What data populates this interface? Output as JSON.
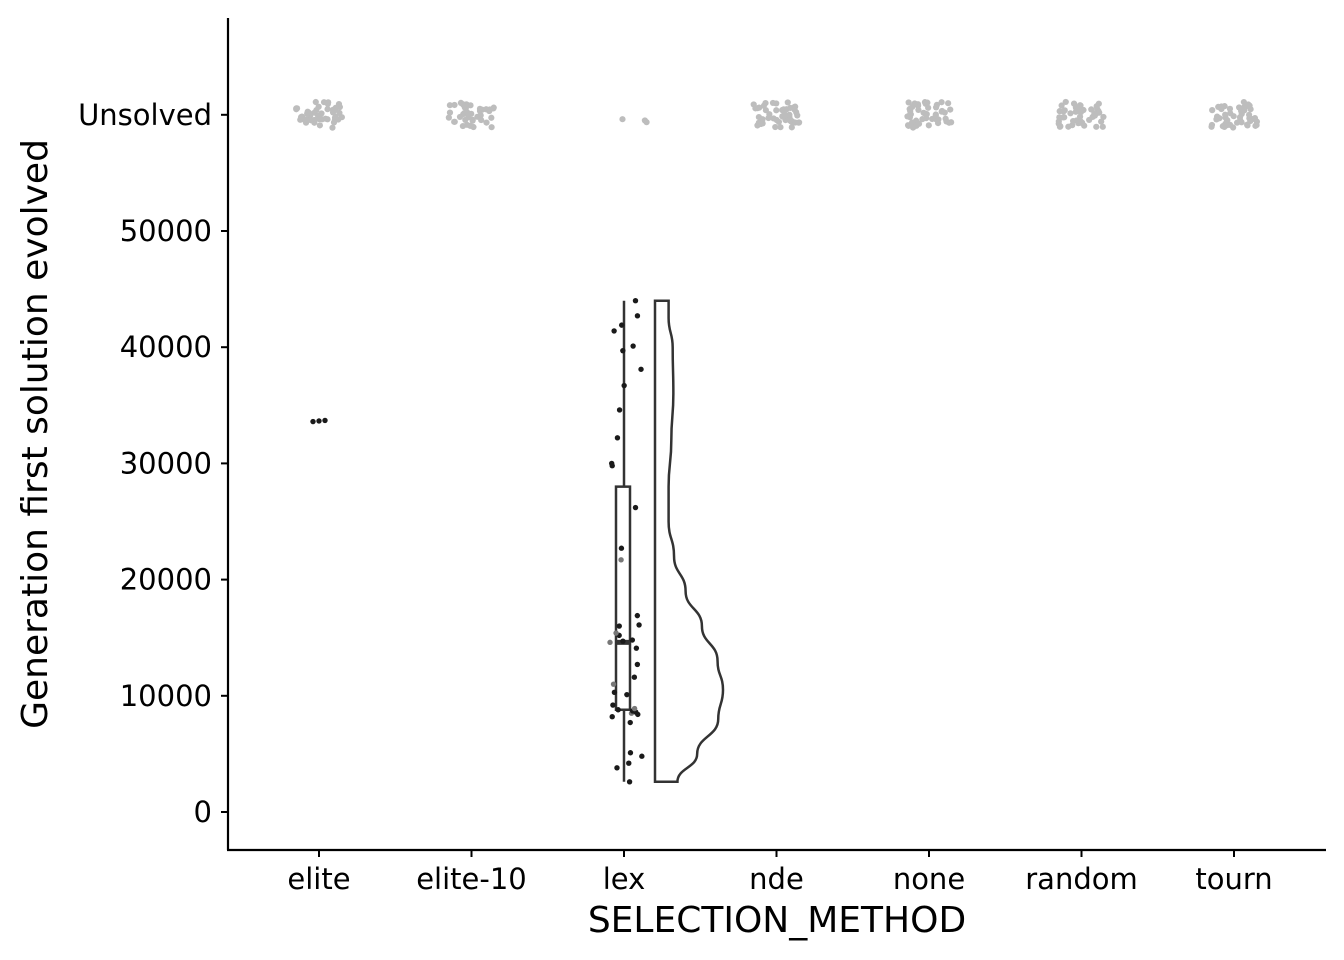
{
  "chart_data": {
    "type": "scatter",
    "subtype": "raincloud (jittered points + boxplot + half violin)",
    "xlabel": "SELECTION_METHOD",
    "ylabel": "Generation first solution evolved",
    "categories": [
      "elite",
      "elite-10",
      "lex",
      "nde",
      "none",
      "random",
      "tourn"
    ],
    "y_ticks": [
      0,
      10000,
      20000,
      30000,
      40000,
      50000
    ],
    "y_tick_labels": [
      "0",
      "10000",
      "20000",
      "30000",
      "40000",
      "50000"
    ],
    "unsolved_label": "Unsolved",
    "unsolved_value": 60000,
    "ylim": [
      -3000,
      68000
    ],
    "grid": false,
    "legend": "none",
    "colors": {
      "solved_point": "#1a1a1a",
      "unsolved_point": "#bdbdbd",
      "outline": "#333333"
    },
    "unsolved_counts": {
      "elite": 48,
      "elite-10": 42,
      "lex": 3,
      "nde": 48,
      "none": 48,
      "random": 48,
      "tourn": 48
    },
    "solved": {
      "elite": [
        33600,
        33650,
        33700
      ],
      "lex": [
        2600,
        3800,
        4200,
        4800,
        5100,
        7700,
        8200,
        8400,
        8500,
        8600,
        8700,
        8800,
        8900,
        9200,
        10100,
        10300,
        11000,
        11600,
        12700,
        14100,
        14600,
        14700,
        14800,
        15200,
        15400,
        16000,
        16100,
        16900,
        21700,
        22700,
        26200,
        29800,
        30000,
        32200,
        34600,
        36700,
        38100,
        39700,
        40100,
        41400,
        41900,
        42700,
        44000
      ]
    },
    "boxplot": {
      "lex": {
        "min": 2600,
        "q1": 8800,
        "median": 14600,
        "q3": 28000,
        "max": 44000
      }
    },
    "violin": {
      "lex": {
        "y": [
          2600,
          5000,
          8000,
          10500,
          13000,
          16000,
          19000,
          22000,
          25000,
          28000,
          32000,
          36000,
          40000,
          42500,
          44000
        ],
        "density": [
          0.33,
          0.62,
          0.93,
          1.0,
          0.92,
          0.69,
          0.45,
          0.28,
          0.2,
          0.2,
          0.24,
          0.27,
          0.26,
          0.2,
          0.2
        ]
      }
    }
  }
}
